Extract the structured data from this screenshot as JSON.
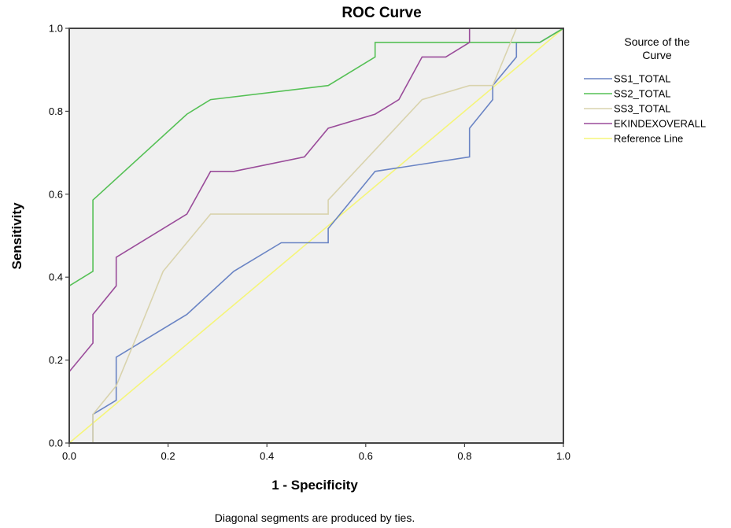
{
  "chart_data": {
    "type": "line",
    "title": "ROC Curve",
    "xlabel": "1 - Specificity",
    "ylabel": "Sensitivity",
    "xlim": [
      0,
      1
    ],
    "ylim": [
      0,
      1
    ],
    "xticks": [
      "0.0",
      "0.2",
      "0.4",
      "0.6",
      "0.8",
      "1.0"
    ],
    "yticks": [
      "0.0",
      "0.2",
      "0.4",
      "0.6",
      "0.8",
      "1.0"
    ],
    "tick_values": [
      0,
      0.2,
      0.4,
      0.6,
      0.8,
      1.0
    ],
    "grid": false,
    "plot_background": "#f0f0f0",
    "legend": {
      "title_line1": "Source of the",
      "title_line2": "Curve",
      "placement": "right"
    },
    "footnote": "Diagonal segments are produced by ties.",
    "series": [
      {
        "name": "SS1_TOTAL",
        "color": "#6a84c4",
        "points": [
          [
            0,
            0
          ],
          [
            0.048,
            0
          ],
          [
            0.048,
            0.069
          ],
          [
            0.095,
            0.103
          ],
          [
            0.095,
            0.207
          ],
          [
            0.238,
            0.31
          ],
          [
            0.333,
            0.414
          ],
          [
            0.429,
            0.483
          ],
          [
            0.524,
            0.483
          ],
          [
            0.524,
            0.517
          ],
          [
            0.619,
            0.655
          ],
          [
            0.81,
            0.69
          ],
          [
            0.81,
            0.759
          ],
          [
            0.857,
            0.828
          ],
          [
            0.857,
            0.862
          ],
          [
            0.905,
            0.931
          ],
          [
            0.905,
            0.966
          ],
          [
            0.952,
            0.966
          ],
          [
            1,
            1
          ]
        ]
      },
      {
        "name": "SS2_TOTAL",
        "color": "#55c055",
        "points": [
          [
            0,
            0
          ],
          [
            0,
            0.379
          ],
          [
            0.048,
            0.414
          ],
          [
            0.048,
            0.586
          ],
          [
            0.238,
            0.793
          ],
          [
            0.286,
            0.828
          ],
          [
            0.524,
            0.862
          ],
          [
            0.619,
            0.931
          ],
          [
            0.619,
            0.966
          ],
          [
            0.905,
            0.966
          ],
          [
            0.952,
            0.966
          ],
          [
            1,
            1
          ]
        ]
      },
      {
        "name": "SS3_TOTAL",
        "color": "#d9d3ad",
        "points": [
          [
            0,
            0
          ],
          [
            0.048,
            0
          ],
          [
            0.048,
            0.069
          ],
          [
            0.095,
            0.138
          ],
          [
            0.143,
            0.276
          ],
          [
            0.19,
            0.414
          ],
          [
            0.286,
            0.552
          ],
          [
            0.524,
            0.552
          ],
          [
            0.524,
            0.586
          ],
          [
            0.714,
            0.828
          ],
          [
            0.81,
            0.862
          ],
          [
            0.857,
            0.862
          ],
          [
            0.905,
            1
          ],
          [
            1,
            1
          ]
        ]
      },
      {
        "name": "EKINDEXOVERALL",
        "color": "#9a4c9a",
        "points": [
          [
            0,
            0
          ],
          [
            0,
            0.172
          ],
          [
            0.048,
            0.241
          ],
          [
            0.048,
            0.31
          ],
          [
            0.095,
            0.379
          ],
          [
            0.095,
            0.448
          ],
          [
            0.238,
            0.552
          ],
          [
            0.286,
            0.655
          ],
          [
            0.333,
            0.655
          ],
          [
            0.476,
            0.69
          ],
          [
            0.524,
            0.759
          ],
          [
            0.619,
            0.793
          ],
          [
            0.667,
            0.828
          ],
          [
            0.714,
            0.931
          ],
          [
            0.762,
            0.931
          ],
          [
            0.81,
            0.966
          ],
          [
            0.81,
            1
          ],
          [
            1,
            1
          ]
        ]
      },
      {
        "name": "Reference Line",
        "color": "#f5f57a",
        "points": [
          [
            0,
            0
          ],
          [
            1,
            1
          ]
        ]
      }
    ]
  }
}
